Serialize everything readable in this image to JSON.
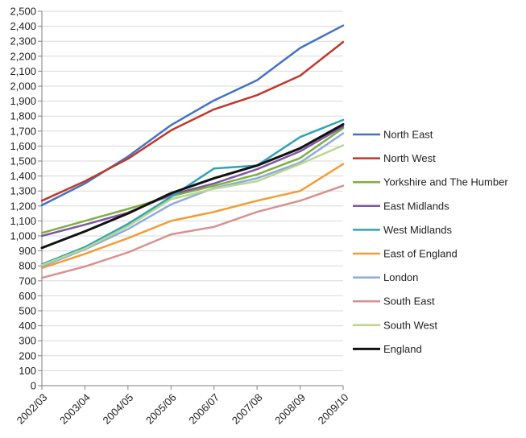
{
  "chart_data": {
    "type": "line",
    "title": "",
    "xlabel": "",
    "ylabel": "",
    "ylim": [
      0,
      2500
    ],
    "ytick_step": 100,
    "grid": "horizontal",
    "legend_position": "right",
    "x": [
      "2002/03",
      "2003/04",
      "2004/05",
      "2005/06",
      "2006/07",
      "2007/08",
      "2008/09",
      "2009/10"
    ],
    "series": [
      {
        "name": "North East",
        "color": "#4472C4",
        "values": [
          1205,
          1350,
          1530,
          1740,
          1905,
          2040,
          2255,
          2405
        ]
      },
      {
        "name": "North West",
        "color": "#C0392B",
        "values": [
          1235,
          1365,
          1515,
          1705,
          1845,
          1940,
          2070,
          2295
        ]
      },
      {
        "name": "Yorkshire and The Humber",
        "color": "#7FAF3F",
        "values": [
          1020,
          1100,
          1180,
          1265,
          1335,
          1410,
          1520,
          1720
        ]
      },
      {
        "name": "East Midlands",
        "color": "#7E57A6",
        "values": [
          1000,
          1075,
          1155,
          1275,
          1350,
          1445,
          1565,
          1730
        ]
      },
      {
        "name": "West Midlands",
        "color": "#2FA3B8",
        "values": [
          810,
          925,
          1080,
          1260,
          1450,
          1470,
          1660,
          1775
        ]
      },
      {
        "name": "East of England",
        "color": "#F39C34",
        "values": [
          785,
          880,
          985,
          1100,
          1160,
          1235,
          1300,
          1480
        ]
      },
      {
        "name": "London",
        "color": "#8FAADC",
        "values": [
          795,
          910,
          1045,
          1210,
          1320,
          1385,
          1490,
          1685
        ]
      },
      {
        "name": "South East",
        "color": "#D9918F",
        "values": [
          720,
          795,
          890,
          1010,
          1060,
          1160,
          1235,
          1335
        ]
      },
      {
        "name": "South West",
        "color": "#B7D78C",
        "values": [
          805,
          915,
          1065,
          1245,
          1315,
          1365,
          1480,
          1605
        ]
      },
      {
        "name": "England",
        "color": "#111111",
        "values": [
          920,
          1030,
          1150,
          1285,
          1385,
          1470,
          1585,
          1745
        ]
      }
    ]
  }
}
